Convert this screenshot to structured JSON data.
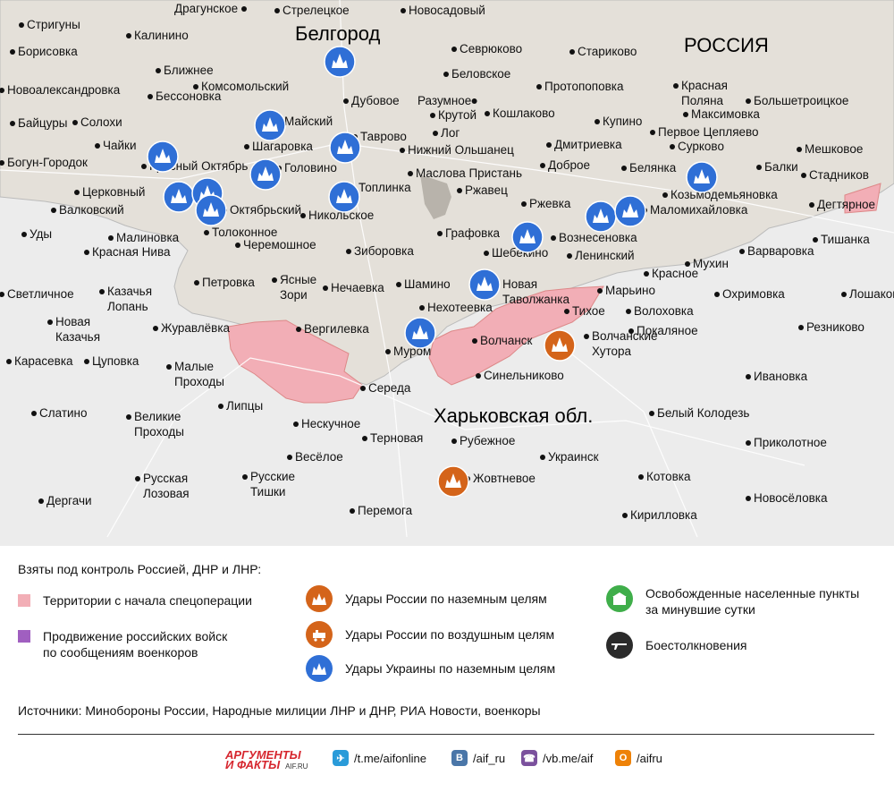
{
  "map": {
    "colors": {
      "russia": "#e4e0d9",
      "ukraine": "#ececec",
      "captured": "#f2aeb6",
      "ua_strike": "#2f6fd6",
      "ru_strike": "#d4641a"
    },
    "region_labels": {
      "russia": "РОССИЯ",
      "oblast": "Харьковская обл.",
      "capital": "Белгород"
    },
    "cities": [
      {
        "name": "Драгунское"
      },
      {
        "name": "Стрелецкое"
      },
      {
        "name": "Новосадовый"
      },
      {
        "name": "Стригуны"
      },
      {
        "name": "Калинино"
      },
      {
        "name": "Борисовка"
      },
      {
        "name": "Севрюково"
      },
      {
        "name": "Беловское"
      },
      {
        "name": "Стариково"
      },
      {
        "name": "Ближнее"
      },
      {
        "name": "Комсомольский"
      },
      {
        "name": "Новоалександровка"
      },
      {
        "name": "Бессоновка"
      },
      {
        "name": "Дубовое"
      },
      {
        "name": "Разумное"
      },
      {
        "name": "Протопоповка"
      },
      {
        "name": "Красная Поляна"
      },
      {
        "name": "Большетроицкое"
      },
      {
        "name": "Байцуры"
      },
      {
        "name": "Солохи"
      },
      {
        "name": "Майский"
      },
      {
        "name": "Крутой"
      },
      {
        "name": "Кошлаково"
      },
      {
        "name": "Купино"
      },
      {
        "name": "Максимовка"
      },
      {
        "name": "Чайки"
      },
      {
        "name": "Шагаровка"
      },
      {
        "name": "Таврово"
      },
      {
        "name": "Лог"
      },
      {
        "name": "Нижний Ольшанец"
      },
      {
        "name": "Первое Цепляево"
      },
      {
        "name": "Богун-Городок"
      },
      {
        "name": "Дмитриевка"
      },
      {
        "name": "Сурково"
      },
      {
        "name": "Мешковое"
      },
      {
        "name": "Красный Октябрь"
      },
      {
        "name": "Головино"
      },
      {
        "name": "Маслова Пристань"
      },
      {
        "name": "Доброе"
      },
      {
        "name": "Белянка"
      },
      {
        "name": "Балки"
      },
      {
        "name": "Стадников"
      },
      {
        "name": "Топлинка"
      },
      {
        "name": "Ржавец"
      },
      {
        "name": "Козьмодемьяновка"
      },
      {
        "name": "Церковный"
      },
      {
        "name": "Ржевка"
      },
      {
        "name": "Дегтярное"
      },
      {
        "name": "Валковский"
      },
      {
        "name": "Октябрьский"
      },
      {
        "name": "Никольское"
      },
      {
        "name": "Маломихайловка"
      },
      {
        "name": "Толоконное"
      },
      {
        "name": "Графовка"
      },
      {
        "name": "Уды"
      },
      {
        "name": "Вознесеновка"
      },
      {
        "name": "Малиновка"
      },
      {
        "name": "Черемошное"
      },
      {
        "name": "Шебекино"
      },
      {
        "name": "Тишанка"
      },
      {
        "name": "Красная Нива"
      },
      {
        "name": "Зиборовка"
      },
      {
        "name": "Ленинский"
      },
      {
        "name": "Варваровка"
      },
      {
        "name": "Мухин"
      },
      {
        "name": "Петровка"
      },
      {
        "name": "Ясные Зори"
      },
      {
        "name": "Шамино"
      },
      {
        "name": "Новая Таволжанка"
      },
      {
        "name": "Красное"
      },
      {
        "name": "Светличное"
      },
      {
        "name": "Казачья Лопань"
      },
      {
        "name": "Нечаевка"
      },
      {
        "name": "Марьино"
      },
      {
        "name": "Охримовка"
      },
      {
        "name": "Лошаково"
      },
      {
        "name": "Нехотеевка"
      },
      {
        "name": "Тихое"
      },
      {
        "name": "Волоховка"
      },
      {
        "name": "Новая Казачья"
      },
      {
        "name": "Журавлёвка"
      },
      {
        "name": "Вергилевка"
      },
      {
        "name": "Покаляное"
      },
      {
        "name": "Резниково"
      },
      {
        "name": "Волчанск"
      },
      {
        "name": "Волчанские Хутора"
      },
      {
        "name": "Карасевка"
      },
      {
        "name": "Цуповка"
      },
      {
        "name": "Муром"
      },
      {
        "name": "Малые Проходы"
      },
      {
        "name": "Синельниково"
      },
      {
        "name": "Ивановка"
      },
      {
        "name": "Середа"
      },
      {
        "name": "Слатино"
      },
      {
        "name": "Великие Проходы"
      },
      {
        "name": "Липцы"
      },
      {
        "name": "Белый Колодезь"
      },
      {
        "name": "Нескучное"
      },
      {
        "name": "Терновая"
      },
      {
        "name": "Рубежное"
      },
      {
        "name": "Приколотное"
      },
      {
        "name": "Весёлое"
      },
      {
        "name": "Украинск"
      },
      {
        "name": "Русская Лозовая"
      },
      {
        "name": "Русские Тишки"
      },
      {
        "name": "Жовтневое"
      },
      {
        "name": "Котовка"
      },
      {
        "name": "Новосёловка"
      },
      {
        "name": "Дергачи"
      },
      {
        "name": "Перемога"
      },
      {
        "name": "Кирилловка"
      }
    ]
  },
  "legend": {
    "title": "Взяты под контроль Россией, ДНР и ЛНР:",
    "items": [
      {
        "label": "Территории с начала спецоперации",
        "color": "#f2aeb6"
      },
      {
        "label": "Продвижение российских войск",
        "label2": "по сообщениям военкоров",
        "color": "#a05fc0"
      },
      {
        "label": "Удары России по наземным целям",
        "icon": "blast-icon",
        "color": "#d4641a"
      },
      {
        "label": "Удары России по воздушным целям",
        "icon": "aircraft-icon",
        "color": "#d4641a"
      },
      {
        "label": "Удары Украины по наземным целям",
        "icon": "blast-icon",
        "color": "#2f6fd6"
      },
      {
        "label": "Освобожденные населенные пункты",
        "label2": "за минувшие сутки",
        "icon": "building-icon",
        "color": "#3fae4a"
      },
      {
        "label": "Боестолкновения",
        "icon": "rifle-icon",
        "color": "#2b2b2b"
      }
    ],
    "sources": "Источники: Минобороны России, Народные милиции ЛНР и ДНР, РИА Новости, военкоры"
  },
  "footer": {
    "logo_line1": "АРГУМЕНТЫ",
    "logo_line2": "И ФАКТЫ",
    "logo_site": "AIF.RU",
    "links": [
      {
        "text": "/t.me/aifonline",
        "icon": "telegram-icon",
        "color": "#2a9bd9"
      },
      {
        "text": "/aif_ru",
        "icon": "vk-icon",
        "color": "#4a76a8"
      },
      {
        "text": "/vb.me/aif",
        "icon": "viber-icon",
        "color": "#7b519d"
      },
      {
        "text": "/aifru",
        "icon": "ok-icon",
        "color": "#ee8208"
      }
    ]
  }
}
